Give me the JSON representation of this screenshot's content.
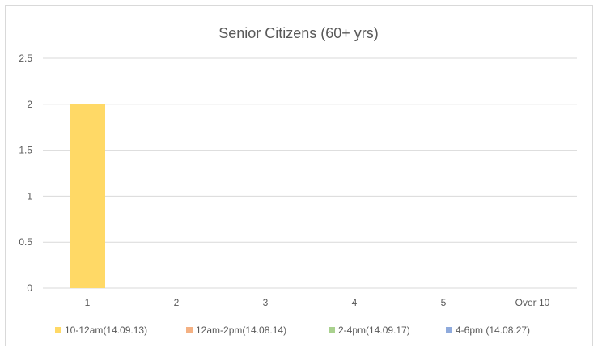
{
  "chart_data": {
    "type": "bar",
    "title": "Senior Citizens (60+ yrs)",
    "xlabel": "",
    "ylabel": "",
    "categories": [
      "1",
      "2",
      "3",
      "4",
      "5",
      "Over 10"
    ],
    "ylim": [
      0,
      2.5
    ],
    "yticks": [
      "0",
      "0.5",
      "1",
      "1.5",
      "2",
      "2.5"
    ],
    "grid": true,
    "legend_position": "bottom",
    "series": [
      {
        "name": "10-12am(14.09.13)",
        "color": "#FFD966",
        "values": [
          2,
          0,
          0,
          0,
          0,
          0
        ]
      },
      {
        "name": "12am-2pm(14.08.14)",
        "color": "#F4B183",
        "values": [
          0,
          0,
          0,
          0,
          0,
          0
        ]
      },
      {
        "name": "2-4pm(14.09.17)",
        "color": "#A9D18E",
        "values": [
          0,
          0,
          0,
          0,
          0,
          0
        ]
      },
      {
        "name": "4-6pm (14.08.27)",
        "color": "#8FAADC",
        "values": [
          0,
          0,
          0,
          0,
          0,
          0
        ]
      }
    ]
  }
}
